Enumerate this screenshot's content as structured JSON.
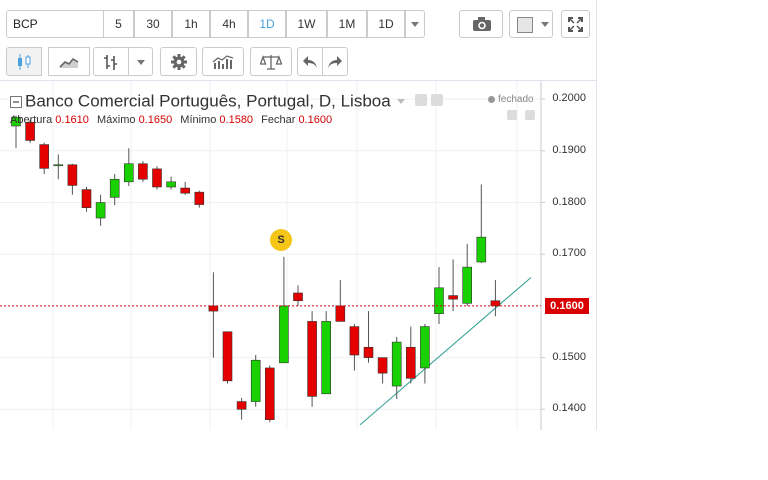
{
  "toolbar": {
    "symbol": "BCP",
    "intervals": [
      {
        "label": "5",
        "active": false
      },
      {
        "label": "30",
        "active": false
      },
      {
        "label": "1h",
        "active": false
      },
      {
        "label": "4h",
        "active": false
      },
      {
        "label": "1D",
        "active": true
      },
      {
        "label": "1W",
        "active": false
      },
      {
        "label": "1M",
        "active": false
      }
    ],
    "range_label": "1D",
    "icons": {
      "snapshot": "camera-icon",
      "color_box": "color-square-icon",
      "fullscreen": "fullscreen-icon"
    }
  },
  "toolbar2": {
    "icons": [
      "candles-icon",
      "area-chart-icon",
      "bars-icon",
      "dropdown-caret-icon",
      "gear-icon",
      "indicators-icon",
      "compare-scale-icon",
      "undo-icon",
      "redo-icon"
    ]
  },
  "legend": {
    "title": "Banco Comercial Português, Portugal, D, Lisboa",
    "status": "fechado",
    "ohlc": [
      {
        "label": "Abertura",
        "value": "0.1610"
      },
      {
        "label": "Máximo",
        "value": "0.1650"
      },
      {
        "label": "Mínimo",
        "value": "0.1580"
      },
      {
        "label": "Fechar",
        "value": "0.1600"
      }
    ]
  },
  "marker": {
    "label": "S"
  },
  "colors": {
    "up": "#19d100",
    "down": "#e50000",
    "price_line": "#d80000",
    "trendline": "#2a9d8f"
  },
  "chart_data": {
    "type": "candlestick",
    "ylim": [
      0.136,
      0.2035
    ],
    "y_ticks": [
      "0.2000",
      "0.1900",
      "0.1800",
      "0.1700",
      "0.1500",
      "0.1400"
    ],
    "last_price": "0.1600",
    "candles": [
      {
        "o": 0.1948,
        "h": 0.1968,
        "l": 0.1905,
        "c": 0.1965
      },
      {
        "o": 0.1955,
        "h": 0.196,
        "l": 0.1915,
        "c": 0.192
      },
      {
        "o": 0.1912,
        "h": 0.1916,
        "l": 0.1855,
        "c": 0.1866
      },
      {
        "o": 0.1873,
        "h": 0.1893,
        "l": 0.1845,
        "c": 0.1873
      },
      {
        "o": 0.1873,
        "h": 0.1875,
        "l": 0.1815,
        "c": 0.1833
      },
      {
        "o": 0.1825,
        "h": 0.183,
        "l": 0.1782,
        "c": 0.179
      },
      {
        "o": 0.177,
        "h": 0.1815,
        "l": 0.1755,
        "c": 0.18
      },
      {
        "o": 0.181,
        "h": 0.1855,
        "l": 0.1795,
        "c": 0.1845
      },
      {
        "o": 0.184,
        "h": 0.1905,
        "l": 0.1832,
        "c": 0.1875
      },
      {
        "o": 0.1875,
        "h": 0.188,
        "l": 0.184,
        "c": 0.1845
      },
      {
        "o": 0.1865,
        "h": 0.187,
        "l": 0.1825,
        "c": 0.183
      },
      {
        "o": 0.183,
        "h": 0.185,
        "l": 0.1825,
        "c": 0.184
      },
      {
        "o": 0.1828,
        "h": 0.184,
        "l": 0.1815,
        "c": 0.1818
      },
      {
        "o": 0.182,
        "h": 0.1823,
        "l": 0.179,
        "c": 0.1796
      },
      {
        "o": 0.16,
        "h": 0.1665,
        "l": 0.15,
        "c": 0.159
      },
      {
        "o": 0.155,
        "h": 0.155,
        "l": 0.145,
        "c": 0.1455
      },
      {
        "o": 0.1415,
        "h": 0.1422,
        "l": 0.138,
        "c": 0.14
      },
      {
        "o": 0.1415,
        "h": 0.1505,
        "l": 0.1405,
        "c": 0.1495
      },
      {
        "o": 0.148,
        "h": 0.1485,
        "l": 0.1375,
        "c": 0.138
      },
      {
        "o": 0.149,
        "h": 0.1695,
        "l": 0.149,
        "c": 0.16
      },
      {
        "o": 0.1625,
        "h": 0.164,
        "l": 0.16,
        "c": 0.161
      },
      {
        "o": 0.157,
        "h": 0.159,
        "l": 0.1405,
        "c": 0.1425
      },
      {
        "o": 0.143,
        "h": 0.159,
        "l": 0.143,
        "c": 0.157
      },
      {
        "o": 0.16,
        "h": 0.165,
        "l": 0.157,
        "c": 0.157
      },
      {
        "o": 0.156,
        "h": 0.1565,
        "l": 0.1475,
        "c": 0.1505
      },
      {
        "o": 0.152,
        "h": 0.159,
        "l": 0.149,
        "c": 0.15
      },
      {
        "o": 0.15,
        "h": 0.15,
        "l": 0.145,
        "c": 0.147
      },
      {
        "o": 0.1445,
        "h": 0.154,
        "l": 0.142,
        "c": 0.153
      },
      {
        "o": 0.152,
        "h": 0.156,
        "l": 0.145,
        "c": 0.146
      },
      {
        "o": 0.148,
        "h": 0.1565,
        "l": 0.145,
        "c": 0.156
      },
      {
        "o": 0.1585,
        "h": 0.1675,
        "l": 0.1565,
        "c": 0.1635
      },
      {
        "o": 0.162,
        "h": 0.169,
        "l": 0.159,
        "c": 0.1613
      },
      {
        "o": 0.1605,
        "h": 0.172,
        "l": 0.16,
        "c": 0.1675
      },
      {
        "o": 0.1685,
        "h": 0.1835,
        "l": 0.1683,
        "c": 0.1733
      },
      {
        "o": 0.161,
        "h": 0.165,
        "l": 0.158,
        "c": 0.16
      }
    ]
  }
}
